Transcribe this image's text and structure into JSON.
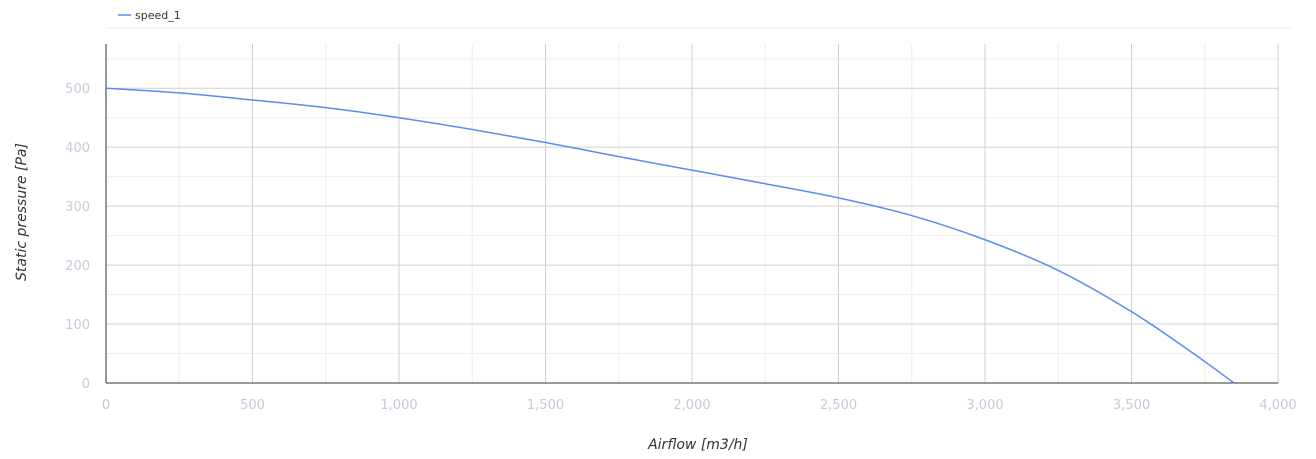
{
  "chart_data": {
    "type": "line",
    "title": "",
    "xlabel": "Airflow [m3/h]",
    "ylabel": "Static pressure [Pa]",
    "xlim": [
      0,
      4000
    ],
    "ylim": [
      0,
      500
    ],
    "x_ticks": [
      0,
      500,
      1000,
      1500,
      2000,
      2500,
      3000,
      3500,
      4000
    ],
    "x_tick_labels": [
      "0",
      "500",
      "1,000",
      "1,500",
      "2,000",
      "2,500",
      "3,000",
      "3,500",
      "4,000"
    ],
    "y_ticks": [
      0,
      100,
      200,
      300,
      400,
      500
    ],
    "y_tick_labels": [
      "0",
      "100",
      "200",
      "300",
      "400",
      "500"
    ],
    "grid": true,
    "legend_position": "top-left",
    "series": [
      {
        "name": "speed_1",
        "color": "#5b8def",
        "x": [
          0,
          250,
          500,
          750,
          1000,
          1250,
          1500,
          1750,
          2000,
          2250,
          2500,
          2750,
          3000,
          3250,
          3500,
          3700,
          3850
        ],
        "y": [
          500,
          492,
          480,
          467,
          450,
          430,
          408,
          384,
          361,
          338,
          314,
          284,
          243,
          191,
          121,
          54,
          0
        ]
      }
    ]
  }
}
